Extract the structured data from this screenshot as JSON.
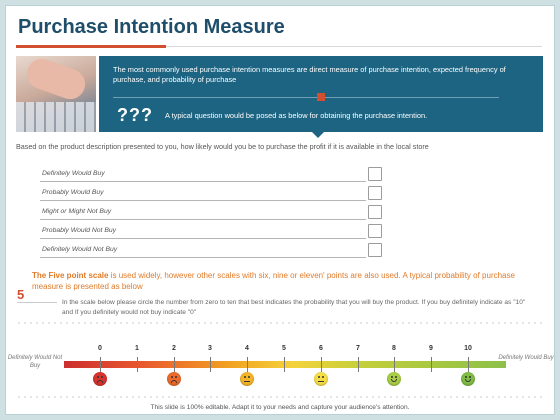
{
  "slide": {
    "title": "Purchase Intention Measure",
    "banner": {
      "text": "The most commonly used purchase intention measures are direct measure of purchase intention, expected frequency of purchase, and probability of purchase",
      "question_icon": "???",
      "question_text": "A typical question would be posed as below for obtaining the purchase intention."
    },
    "intro": "Based on the product description presented to you, how likely would you be to purchase the profit if it is available in the local store",
    "options": [
      {
        "label": "Definitely Would Buy"
      },
      {
        "label": "Probably Would Buy"
      },
      {
        "label": "Might or Might Not Buy"
      },
      {
        "label": "Probably Would Not Buy"
      },
      {
        "label": "Definitely Would Not Buy"
      }
    ],
    "five_point": {
      "bold": "The Five point scale",
      "rest": " is used widely, however other scales with six, nine or eleven' points are also used. A typical probability of purchase measure is presented as below",
      "icon": "5",
      "note": "In the scale below please circle the number from zero to ten that best indicates the probability that you will buy the product. If you buy definitely indicate as \"10\" and If you definitely would not buy indicate \"0\""
    },
    "scale": {
      "left_label": "Definitely Would Not Buy",
      "right_label": "Definitely Would Buy",
      "ticks": [
        "0",
        "1",
        "2",
        "3",
        "4",
        "5",
        "6",
        "7",
        "8",
        "9",
        "10"
      ],
      "faces": [
        {
          "mood": "sad",
          "color": "#d7332f"
        },
        {
          "mood": "sad",
          "color": "#ec6a2b"
        },
        {
          "mood": "flat",
          "color": "#f5b52a"
        },
        {
          "mood": "flat",
          "color": "#f6de46"
        },
        {
          "mood": "happy",
          "color": "#a9cd45"
        },
        {
          "mood": "happy",
          "color": "#7fbd45"
        }
      ]
    },
    "footer": "This slide is 100% editable. Adapt it to your needs and capture your audience's attention."
  }
}
